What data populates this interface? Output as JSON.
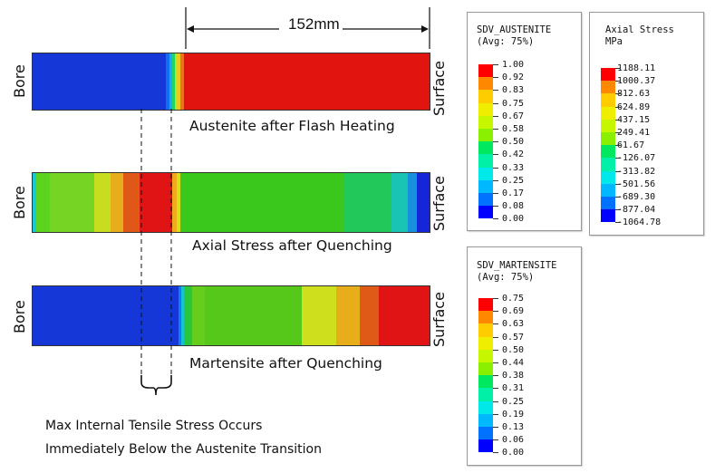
{
  "dimension": {
    "label": "152mm"
  },
  "bars": [
    {
      "bore_label": "Bore",
      "surface_label": "Surface",
      "caption": "Austenite after Flash Heating",
      "segments": [
        {
          "w": 147,
          "c": "#1537d8"
        },
        {
          "w": 4,
          "c": "#0f6ff0"
        },
        {
          "w": 3,
          "c": "#18b0e8"
        },
        {
          "w": 3,
          "c": "#22d36a"
        },
        {
          "w": 3,
          "c": "#bfe21f"
        },
        {
          "w": 3,
          "c": "#f2c61a"
        },
        {
          "w": 4,
          "c": "#f07022"
        },
        {
          "w": 271,
          "c": "#e2140f"
        }
      ]
    },
    {
      "bore_label": "Bore",
      "surface_label": "Surface",
      "caption": "Axial Stress after Quenching",
      "segments": [
        {
          "w": 4,
          "c": "#19c8d8"
        },
        {
          "w": 15,
          "c": "#5bd31f"
        },
        {
          "w": 49,
          "c": "#75d424"
        },
        {
          "w": 18,
          "c": "#c6de1f"
        },
        {
          "w": 14,
          "c": "#e6ad1c"
        },
        {
          "w": 18,
          "c": "#e05818"
        },
        {
          "w": 36,
          "c": "#e01414"
        },
        {
          "w": 5,
          "c": "#f0aa1c"
        },
        {
          "w": 4,
          "c": "#d8e01a"
        },
        {
          "w": 180,
          "c": "#3ac81c"
        },
        {
          "w": 52,
          "c": "#22c85a"
        },
        {
          "w": 18,
          "c": "#19c4b4"
        },
        {
          "w": 10,
          "c": "#1890e0"
        },
        {
          "w": 14,
          "c": "#1426d8"
        }
      ]
    },
    {
      "bore_label": "Bore",
      "surface_label": "Surface",
      "caption": "Martensite after Quenching",
      "segments": [
        {
          "w": 161,
          "c": "#1537d8"
        },
        {
          "w": 3,
          "c": "#107ef0"
        },
        {
          "w": 3,
          "c": "#16c2d4"
        },
        {
          "w": 9,
          "c": "#29c63e"
        },
        {
          "w": 14,
          "c": "#67cd1c"
        },
        {
          "w": 107,
          "c": "#55c819"
        },
        {
          "w": 38,
          "c": "#cddf1d"
        },
        {
          "w": 26,
          "c": "#e8ad1a"
        },
        {
          "w": 21,
          "c": "#e05a17"
        },
        {
          "w": 56,
          "c": "#e01414"
        }
      ]
    }
  ],
  "colors": [
    "#0000ff",
    "#0072ff",
    "#00b8ff",
    "#00e8e8",
    "#00f0a8",
    "#00e860",
    "#33e600",
    "#8aef00",
    "#c6f700",
    "#f0ee00",
    "#ffcc00",
    "#ff8800",
    "#ff0000"
  ],
  "legends": [
    {
      "title": "SDV_AUSTENITE\n(Avg: 75%)",
      "values": [
        "1.00",
        "0.92",
        "0.83",
        "0.75",
        "0.67",
        "0.58",
        "0.50",
        "0.42",
        "0.33",
        "0.25",
        "0.17",
        "0.08",
        "0.00"
      ]
    },
    {
      "title": "Axial Stress\nMPa",
      "values": [
        "1188.11",
        "1000.37",
        "812.63",
        "624.89",
        "437.15",
        "249.41",
        "61.67",
        "-126.07",
        "-313.82",
        "-501.56",
        "-689.30",
        "-877.04",
        "-1064.78"
      ]
    },
    {
      "title": "SDV_MARTENSITE\n(Avg: 75%)",
      "values": [
        "0.75",
        "0.69",
        "0.63",
        "0.57",
        "0.50",
        "0.44",
        "0.38",
        "0.31",
        "0.25",
        "0.19",
        "0.13",
        "0.06",
        "0.00"
      ]
    }
  ],
  "note": {
    "line1": "Max Internal Tensile Stress Occurs",
    "line2": "Immediately Below the Austenite Transition"
  }
}
